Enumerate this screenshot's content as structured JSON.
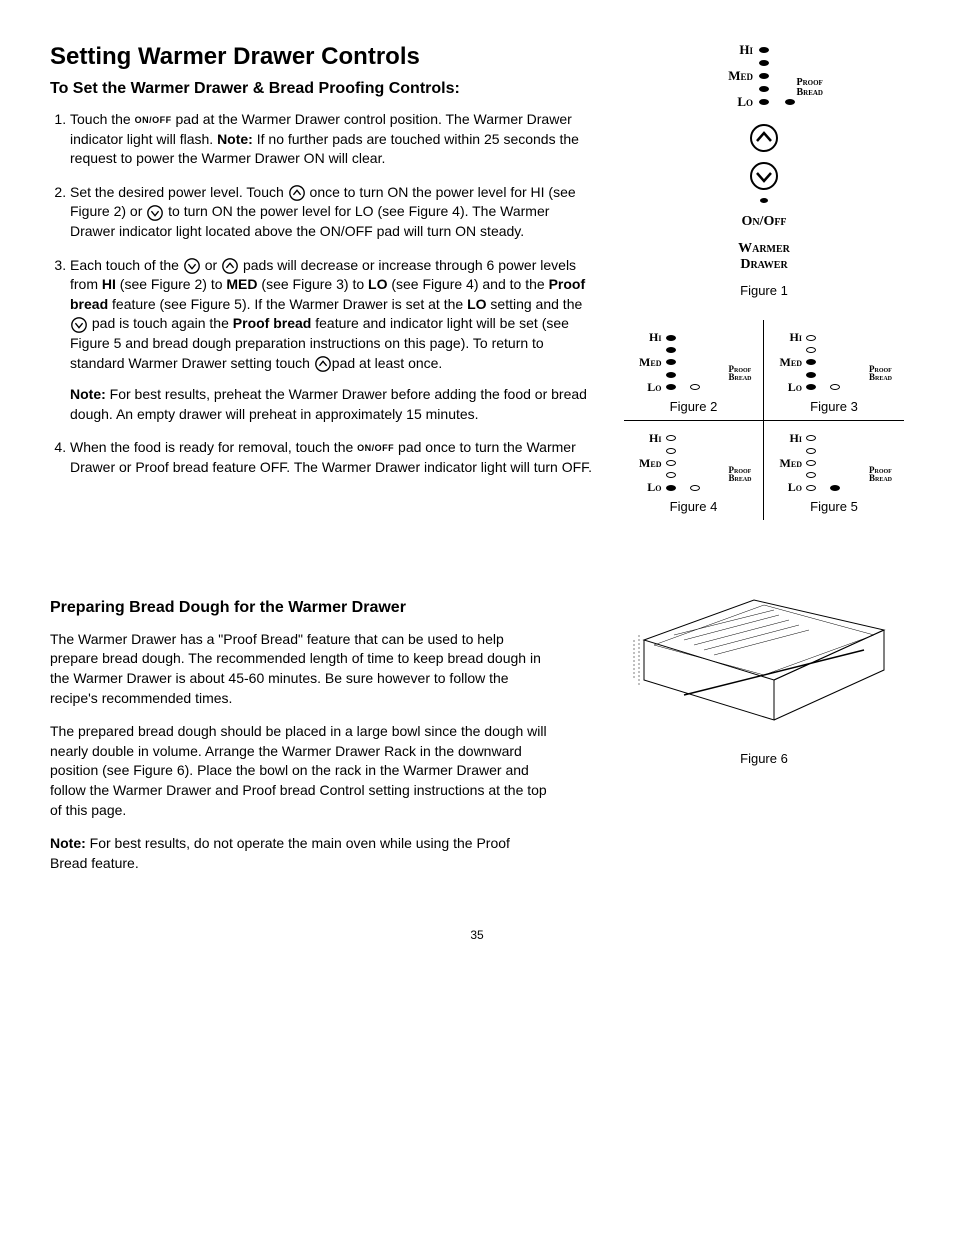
{
  "title": "Setting Warmer Drawer Controls",
  "subtitle1": "To Set the Warmer Drawer & Bread Proofing Controls:",
  "step1_a": "Touch the ",
  "onoff_pad": "ON/OFF",
  "step1_b": " pad at the Warmer Drawer control position. The Warmer Drawer indicator light will flash. ",
  "step1_note_label": "Note:",
  "step1_c": " If no further pads are touched within 25 seconds the request to power the Warmer Drawer ON will clear.",
  "step2_a": "Set the desired power level. Touch ",
  "step2_b": " once to turn ON the power level for HI (see Figure 2) or ",
  "step2_c": " to turn ON the power level for LO (see Figure 4). The Warmer Drawer indicator light located above the ON/OFF pad will turn ON steady.",
  "step3_a": "Each touch of the ",
  "step3_b": " or ",
  "step3_c": " pads will decrease or increase through 6 power levels from ",
  "step3_hi": "HI",
  "step3_d": " (see Figure 2) to ",
  "step3_med": "MED",
  "step3_e": " (see Figure 3) to ",
  "step3_lo": "LO",
  "step3_f": " (see Figure 4) and to the ",
  "step3_proof": "Proof bread",
  "step3_g": " feature (see Figure 5). If the Warmer Drawer is set at the ",
  "step3_lo2": "LO",
  "step3_h": " setting and the ",
  "step3_i": " pad is touch again the ",
  "step3_proof2": "Proof bread",
  "step3_j": " feature and indicator light will be set (see Figure 5 and bread dough preparation instructions on this page). To return to standard Warmer Drawer setting touch ",
  "step3_k": "pad at least once.",
  "step3_note_label": "Note:",
  "step3_note": " For best results, preheat the Warmer Drawer before adding the food or bread dough. An empty drawer will preheat in approximately 15 minutes.",
  "step4_a": "When the food is ready for removal, touch the ",
  "step4_b": " pad once to turn the Warmer Drawer or Proof bread feature OFF. The Warmer Drawer indicator light will turn OFF.",
  "subtitle2": "Preparing Bread Dough for the Warmer Drawer",
  "prep_p1": "The Warmer Drawer has a \"Proof Bread\" feature that can be used to help prepare bread dough. The recommended length of time to keep bread dough in the Warmer Drawer is about 45-60 minutes. Be sure however to follow the recipe's recommended times.",
  "prep_p2": "The prepared bread dough should be placed in a large bowl since the dough will nearly double in volume. Arrange the Warmer Drawer Rack in the downward position (see Figure 6). Place the bowl on the rack in the Warmer Drawer and follow the Warmer Drawer and Proof bread Control setting instructions at the top of this page.",
  "prep_note_label": "Note:",
  "prep_note": " For best results, do not operate the main oven while using the Proof Bread feature.",
  "labels": {
    "hi": "Hi",
    "med": "Med",
    "lo": "Lo",
    "proof": "Proof",
    "bread": "Bread",
    "onoff": "On/Off",
    "warmer": "Warmer",
    "drawer": "Drawer"
  },
  "captions": {
    "fig1": "Figure 1",
    "fig2": "Figure 2",
    "fig3": "Figure 3",
    "fig4": "Figure 4",
    "fig5": "Figure 5",
    "fig6": "Figure 6"
  },
  "figures": {
    "fig2": {
      "hi": "filled",
      "hi2": "filled",
      "med": "filled",
      "med2": "filled",
      "lo": "filled",
      "pb": "empty"
    },
    "fig3": {
      "hi": "empty",
      "hi2": "empty",
      "med": "filled",
      "med2": "filled",
      "lo": "filled",
      "pb": "empty"
    },
    "fig4": {
      "hi": "empty",
      "hi2": "empty",
      "med": "empty",
      "med2": "empty",
      "lo": "filled",
      "pb": "empty"
    },
    "fig5": {
      "hi": "empty",
      "hi2": "empty",
      "med": "empty",
      "med2": "empty",
      "lo": "empty",
      "pb": "filled"
    }
  },
  "page_num": "35"
}
